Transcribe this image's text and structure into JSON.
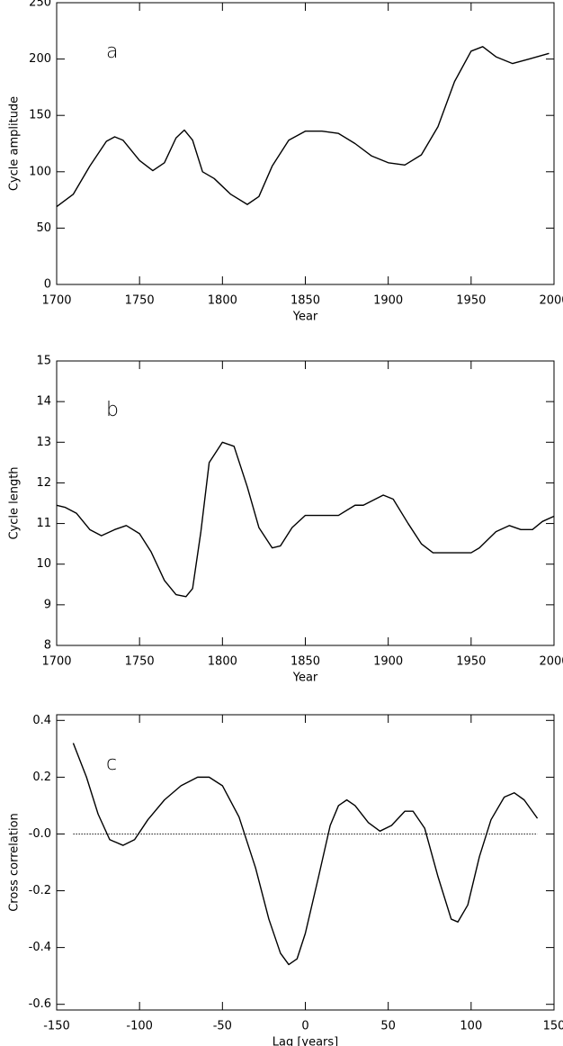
{
  "chart_data": [
    {
      "type": "line",
      "annotation": "a",
      "xlabel": "Year",
      "ylabel": "Cycle amplitude",
      "xlim": [
        1700,
        2000
      ],
      "xticks": [
        1700,
        1750,
        1800,
        1850,
        1900,
        1950,
        2000
      ],
      "ylim": [
        0,
        250
      ],
      "yticks": [
        0,
        50,
        100,
        150,
        200,
        250
      ],
      "series": [
        {
          "color": "#000000",
          "x": [
            1700,
            1710,
            1720,
            1730,
            1735,
            1740,
            1750,
            1758,
            1765,
            1772,
            1777,
            1782,
            1788,
            1795,
            1805,
            1815,
            1822,
            1830,
            1840,
            1850,
            1860,
            1870,
            1880,
            1890,
            1900,
            1910,
            1920,
            1930,
            1940,
            1950,
            1957,
            1965,
            1975,
            1985,
            1997
          ],
          "values": [
            69,
            80,
            105,
            127,
            131,
            128,
            110,
            101,
            108,
            130,
            137,
            128,
            100,
            94,
            80,
            71,
            78,
            105,
            128,
            136,
            136,
            134,
            125,
            114,
            108,
            106,
            115,
            140,
            180,
            207,
            211,
            202,
            196,
            200,
            205
          ]
        }
      ]
    },
    {
      "type": "line",
      "annotation": "b",
      "xlabel": "Year",
      "ylabel": "Cycle length",
      "xlim": [
        1700,
        2000
      ],
      "xticks": [
        1700,
        1750,
        1800,
        1850,
        1900,
        1950,
        2000
      ],
      "ylim": [
        8,
        15
      ],
      "yticks": [
        8,
        9,
        10,
        11,
        12,
        13,
        14,
        15
      ],
      "series": [
        {
          "color": "#000000",
          "x": [
            1700,
            1705,
            1712,
            1720,
            1727,
            1735,
            1742,
            1750,
            1757,
            1765,
            1772,
            1778,
            1782,
            1787,
            1792,
            1800,
            1807,
            1815,
            1822,
            1830,
            1835,
            1842,
            1850,
            1870,
            1880,
            1885,
            1897,
            1903,
            1912,
            1920,
            1927,
            1950,
            1955,
            1965,
            1973,
            1980,
            1987,
            1993,
            2000
          ],
          "values": [
            11.45,
            11.4,
            11.25,
            10.85,
            10.7,
            10.85,
            10.95,
            10.75,
            10.3,
            9.6,
            9.25,
            9.2,
            9.4,
            10.8,
            12.5,
            13.0,
            12.9,
            11.9,
            10.9,
            10.4,
            10.45,
            10.9,
            11.2,
            11.2,
            11.45,
            11.45,
            11.7,
            11.6,
            11.0,
            10.5,
            10.28,
            10.28,
            10.4,
            10.8,
            10.95,
            10.85,
            10.85,
            11.05,
            11.18
          ]
        }
      ]
    },
    {
      "type": "line",
      "annotation": "c",
      "xlabel": "Lag [years]",
      "ylabel": "Cross correlation",
      "xlim": [
        -150,
        150
      ],
      "xticks": [
        -150,
        -100,
        -50,
        0,
        50,
        100,
        150
      ],
      "ylim": [
        -0.62,
        0.42
      ],
      "yticks": [
        -0.6,
        -0.4,
        -0.2,
        {
          "value": 0,
          "label": "-0.0"
        },
        0.2,
        0.4
      ],
      "reference_line": {
        "y": 0,
        "x": [
          -140,
          140
        ],
        "style": "dotted"
      },
      "series": [
        {
          "color": "#000000",
          "x": [
            -140,
            -132,
            -125,
            -118,
            -110,
            -103,
            -95,
            -85,
            -75,
            -65,
            -58,
            -50,
            -40,
            -30,
            -22,
            -15,
            -10,
            -5,
            0,
            8,
            15,
            20,
            25,
            30,
            38,
            45,
            52,
            60,
            65,
            72,
            80,
            88,
            92,
            98,
            105,
            112,
            120,
            126,
            132,
            140
          ],
          "values": [
            0.32,
            0.2,
            0.07,
            -0.02,
            -0.04,
            -0.02,
            0.05,
            0.12,
            0.17,
            0.2,
            0.2,
            0.17,
            0.06,
            -0.12,
            -0.3,
            -0.42,
            -0.46,
            -0.44,
            -0.35,
            -0.15,
            0.03,
            0.1,
            0.12,
            0.1,
            0.04,
            0.01,
            0.03,
            0.08,
            0.08,
            0.02,
            -0.15,
            -0.3,
            -0.31,
            -0.25,
            -0.08,
            0.05,
            0.13,
            0.145,
            0.12,
            0.055
          ]
        }
      ]
    }
  ]
}
